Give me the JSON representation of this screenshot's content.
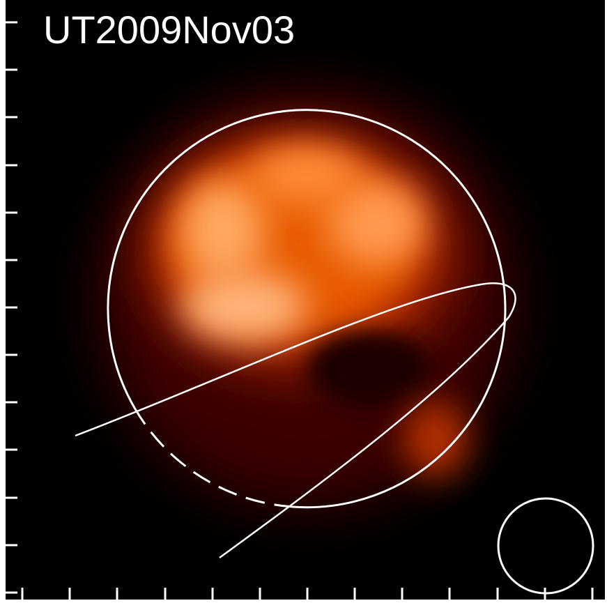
{
  "image": {
    "label": "UT2009Nov03"
  }
}
